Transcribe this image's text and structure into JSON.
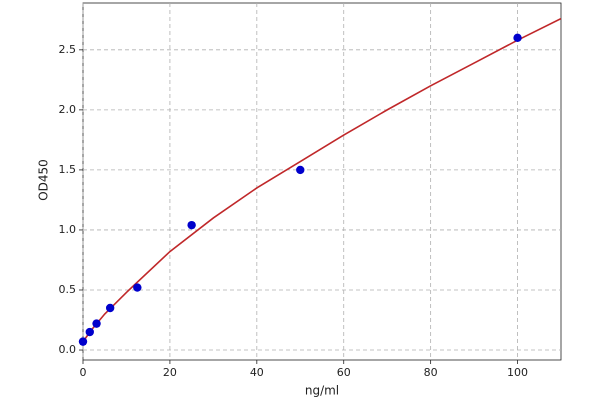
{
  "chart_data": {
    "type": "scatter",
    "x_label": "ng/ml",
    "y_label": "OD450",
    "xlim": [
      0,
      110
    ],
    "ylim": [
      -0.083,
      2.89
    ],
    "xticks": [
      0,
      20,
      40,
      60,
      80,
      100
    ],
    "yticks": [
      {
        "value": 0,
        "label": "0.0"
      },
      {
        "value": 0.5,
        "label": "0.5"
      },
      {
        "value": 1,
        "label": "1.0"
      },
      {
        "value": 1.5,
        "label": "1.5"
      },
      {
        "value": 2,
        "label": "2.0"
      },
      {
        "value": 2.5,
        "label": "2.5"
      }
    ],
    "grid": true,
    "series": [
      {
        "color": "#0000cc",
        "x": [
          0,
          1.56,
          3.12,
          6.25,
          12.5,
          25,
          50,
          100
        ],
        "values": [
          0.07,
          0.15,
          0.22,
          0.35,
          0.52,
          1.04,
          1.5,
          2.6
        ]
      },
      {
        "color": "#c0282a",
        "line": true,
        "x": [
          0,
          2,
          5,
          10,
          20,
          30,
          40,
          50,
          60,
          70,
          80,
          90,
          100,
          110
        ],
        "values": [
          0.07,
          0.17,
          0.3,
          0.48,
          0.82,
          1.1,
          1.35,
          1.57,
          1.79,
          2.0,
          2.2,
          2.39,
          2.58,
          2.76
        ]
      }
    ]
  }
}
